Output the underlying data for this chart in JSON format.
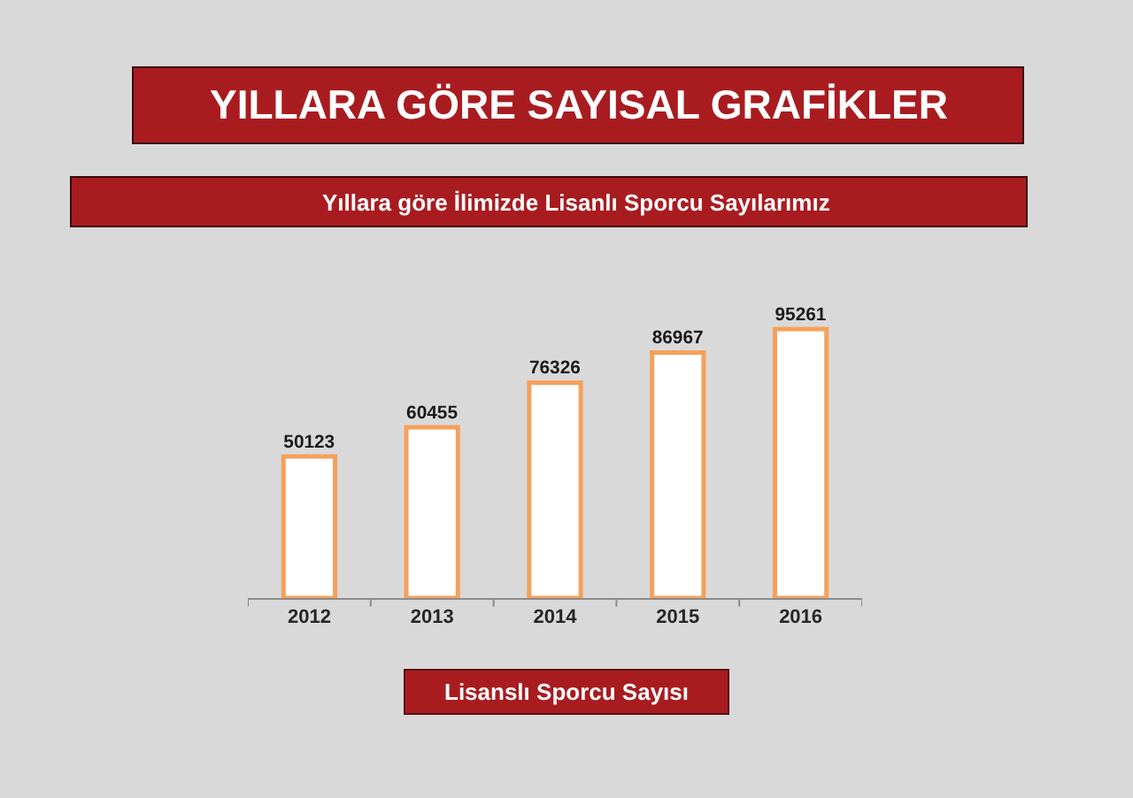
{
  "chart_data": {
    "type": "bar",
    "title": "YILLARA GÖRE SAYISAL GRAFİKLER",
    "subtitle": "Yıllara göre İlimizde Lisanlı Sporcu Sayılarımız",
    "xlabel": "Lisanslı Sporcu Sayısı",
    "categories": [
      "2012",
      "2013",
      "2014",
      "2015",
      "2016"
    ],
    "values": [
      50123,
      60455,
      76326,
      86967,
      95261
    ],
    "color": "#ffffff",
    "data_labels": true,
    "tick_labels": "x"
  }
}
